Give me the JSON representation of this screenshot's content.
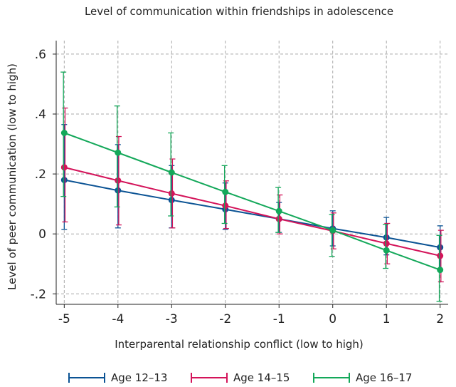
{
  "chart_data": {
    "type": "line",
    "title": "Level of communication within friendships in adolescence",
    "xlabel": "Interparental relationship conflict (low to high)",
    "ylabel": "Level of peer communication (low to high)",
    "x": [
      -5,
      -4,
      -3,
      -2,
      -1,
      0,
      1,
      2
    ],
    "x_tick_labels": [
      "-5",
      "-4",
      "-3",
      "-2",
      "-1",
      "0",
      "1",
      "2"
    ],
    "y_ticks": [
      -0.2,
      0,
      0.2,
      0.4,
      0.6
    ],
    "y_tick_labels": [
      "-.2",
      "0",
      ".2",
      ".4",
      ".6"
    ],
    "xlim": [
      -5.15,
      2.15
    ],
    "ylim": [
      -0.235,
      0.645
    ],
    "grid": true,
    "legend_position": "bottom",
    "series": [
      {
        "name": "Age 12–13",
        "color": "#0b5394",
        "values": [
          0.18,
          0.145,
          0.113,
          0.082,
          0.05,
          0.018,
          -0.012,
          -0.045
        ],
        "ci_low": [
          0.015,
          0.02,
          0.02,
          0.015,
          0.005,
          -0.04,
          -0.07,
          -0.12
        ],
        "ci_high": [
          0.365,
          0.298,
          0.228,
          0.17,
          0.105,
          0.077,
          0.055,
          0.027
        ]
      },
      {
        "name": "Age 14–15",
        "color": "#d4145a",
        "values": [
          0.222,
          0.178,
          0.135,
          0.094,
          0.05,
          0.01,
          -0.032,
          -0.073
        ],
        "ci_low": [
          0.04,
          0.03,
          0.02,
          0.018,
          0.0,
          -0.05,
          -0.1,
          -0.16
        ],
        "ci_high": [
          0.42,
          0.325,
          0.25,
          0.177,
          0.13,
          0.07,
          0.035,
          0.012
        ]
      },
      {
        "name": "Age 16–17",
        "color": "#14a85a",
        "values": [
          0.337,
          0.271,
          0.205,
          0.14,
          0.076,
          0.012,
          -0.055,
          -0.12
        ],
        "ci_low": [
          0.125,
          0.09,
          0.06,
          0.035,
          0.005,
          -0.075,
          -0.115,
          -0.225
        ],
        "ci_high": [
          0.54,
          0.427,
          0.337,
          0.228,
          0.155,
          0.065,
          0.032,
          -0.005
        ]
      }
    ]
  }
}
